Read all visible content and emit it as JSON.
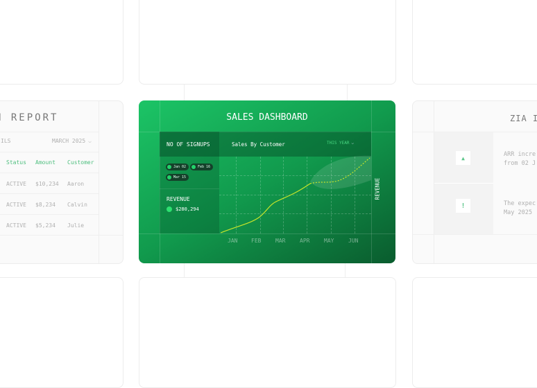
{
  "left_card": {
    "title": "N REPORT",
    "filter_label": "ILS",
    "period": "MARCH 2025",
    "columns": [
      "Status",
      "Amount",
      "Customer"
    ],
    "rows": [
      {
        "status": "ACTIVE",
        "amount": "$10,234",
        "customer": "Aaron"
      },
      {
        "status": "ACTIVE",
        "amount": "$8,234",
        "customer": "Calvin"
      },
      {
        "status": "ACTIVE",
        "amount": "$5,234",
        "customer": "Julie"
      }
    ]
  },
  "dashboard": {
    "title": "SALES DASHBOARD",
    "signups_label": "NO OF SIGNUPS",
    "chips": [
      "Jan 02",
      "Feb 16",
      "Mar 15"
    ],
    "revenue_label": "REVENUE",
    "revenue_value": "$280,294",
    "chart_title": "Sales By Customer",
    "range": "THIS YEAR",
    "months": [
      "JAN",
      "FEB",
      "MAR",
      "APR",
      "MAY",
      "JUN"
    ],
    "axis_label": "REVENUE",
    "colors": {
      "bg_start": "#1cc466",
      "bg_end": "#0a5c2e",
      "line": "#c8e62a"
    }
  },
  "right_card": {
    "title": "ZIA I",
    "insights": [
      {
        "icon": "triangle-up-icon",
        "line1": "ARR incre",
        "line2": "from 02 J"
      },
      {
        "icon": "exclamation-icon",
        "line1": "The expec",
        "line2": "May 2025"
      }
    ]
  }
}
